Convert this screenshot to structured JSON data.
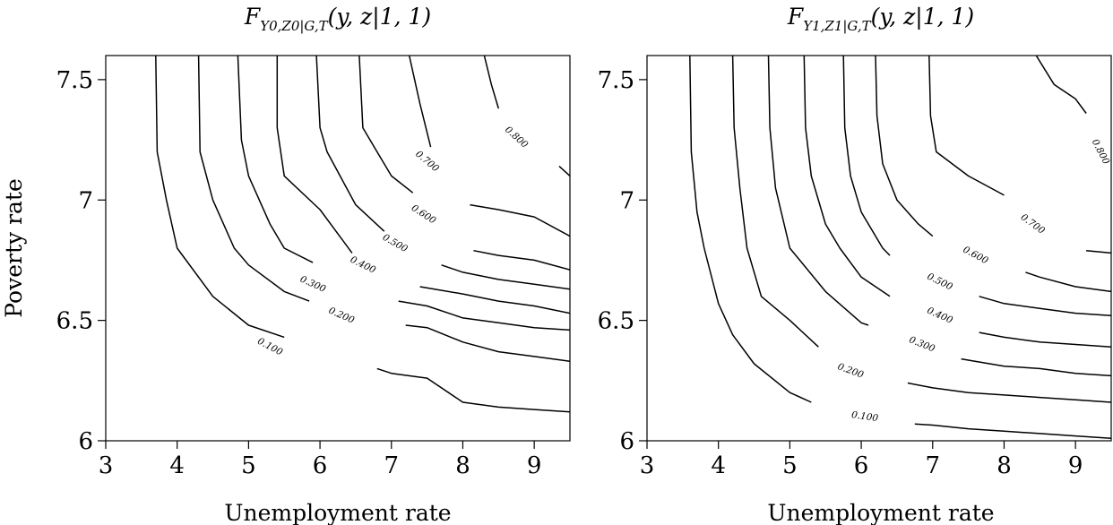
{
  "chart_data": [
    {
      "type": "contour",
      "title_main": "F",
      "title_sub": "Y0,Z0|G,T",
      "title_args": "(y, z|1, 1)",
      "xlabel": "Unemployment rate",
      "ylabel": "Poverty rate",
      "xlim": [
        3,
        9.5
      ],
      "ylim": [
        6,
        7.6
      ],
      "xticks": [
        3,
        4,
        5,
        6,
        7,
        8,
        9
      ],
      "yticks": [
        6,
        6.5,
        7,
        7.5
      ],
      "ytick_labels": [
        "6",
        "6.5",
        "7",
        "7.5"
      ],
      "grid": false,
      "levels": [
        {
          "label": "0.100",
          "label_pos": [
            5.3,
            6.39
          ],
          "label_angle": 28,
          "segments": [
            [
              [
                3.7,
                7.6
              ],
              [
                3.72,
                7.2
              ],
              [
                3.85,
                7.0
              ],
              [
                4.0,
                6.8
              ],
              [
                4.5,
                6.6
              ],
              [
                5.0,
                6.48
              ],
              [
                5.5,
                6.43
              ]
            ],
            [
              [
                6.8,
                6.3
              ],
              [
                7.0,
                6.28
              ],
              [
                7.5,
                6.26
              ],
              [
                8.0,
                6.16
              ],
              [
                8.5,
                6.14
              ],
              [
                9.0,
                6.13
              ],
              [
                9.5,
                6.12
              ]
            ]
          ]
        },
        {
          "label": "0.200",
          "label_pos": [
            6.3,
            6.52
          ],
          "label_angle": 24,
          "segments": [
            [
              [
                4.3,
                7.6
              ],
              [
                4.32,
                7.2
              ],
              [
                4.5,
                7.0
              ],
              [
                4.8,
                6.8
              ],
              [
                5.0,
                6.73
              ],
              [
                5.5,
                6.62
              ],
              [
                5.85,
                6.58
              ]
            ],
            [
              [
                7.2,
                6.48
              ],
              [
                7.5,
                6.47
              ],
              [
                8.0,
                6.41
              ],
              [
                8.5,
                6.37
              ],
              [
                9.0,
                6.35
              ],
              [
                9.5,
                6.33
              ]
            ]
          ]
        },
        {
          "label": "0.300",
          "label_pos": [
            5.9,
            6.65
          ],
          "label_angle": 24,
          "segments": [
            [
              [
                4.85,
                7.6
              ],
              [
                4.9,
                7.25
              ],
              [
                5.0,
                7.1
              ],
              [
                5.3,
                6.9
              ],
              [
                5.5,
                6.8
              ],
              [
                5.9,
                6.74
              ]
            ],
            [
              [
                7.1,
                6.58
              ],
              [
                7.5,
                6.56
              ],
              [
                8.0,
                6.51
              ],
              [
                8.5,
                6.49
              ],
              [
                9.0,
                6.47
              ],
              [
                9.5,
                6.46
              ]
            ]
          ]
        },
        {
          "label": "0.400",
          "label_pos": [
            6.6,
            6.73
          ],
          "label_angle": 26,
          "segments": [
            [
              [
                5.4,
                7.6
              ],
              [
                5.4,
                7.3
              ],
              [
                5.5,
                7.1
              ],
              [
                6.0,
                6.96
              ],
              [
                6.3,
                6.84
              ],
              [
                6.45,
                6.78
              ]
            ],
            [
              [
                7.4,
                6.64
              ],
              [
                8.0,
                6.61
              ],
              [
                8.5,
                6.58
              ],
              [
                9.0,
                6.56
              ],
              [
                9.5,
                6.53
              ]
            ]
          ]
        },
        {
          "label": "0.500",
          "label_pos": [
            7.05,
            6.82
          ],
          "label_angle": 30,
          "segments": [
            [
              [
                5.95,
                7.6
              ],
              [
                6.0,
                7.3
              ],
              [
                6.1,
                7.2
              ],
              [
                6.5,
                6.98
              ],
              [
                6.9,
                6.87
              ]
            ],
            [
              [
                7.7,
                6.73
              ],
              [
                8.0,
                6.7
              ],
              [
                8.5,
                6.67
              ],
              [
                9.0,
                6.65
              ],
              [
                9.5,
                6.63
              ]
            ]
          ]
        },
        {
          "label": "0.600",
          "label_pos": [
            7.45,
            6.94
          ],
          "label_angle": 33,
          "segments": [
            [
              [
                6.55,
                7.6
              ],
              [
                6.6,
                7.3
              ],
              [
                6.8,
                7.2
              ],
              [
                7.0,
                7.1
              ],
              [
                7.3,
                7.03
              ]
            ],
            [
              [
                8.15,
                6.79
              ],
              [
                8.5,
                6.77
              ],
              [
                9.0,
                6.75
              ],
              [
                9.5,
                6.71
              ]
            ]
          ]
        },
        {
          "label": "0.700",
          "label_pos": [
            7.5,
            7.16
          ],
          "label_angle": 40,
          "segments": [
            [
              [
                7.25,
                7.6
              ],
              [
                7.4,
                7.4
              ],
              [
                7.55,
                7.22
              ]
            ],
            [
              [
                8.1,
                6.98
              ],
              [
                8.5,
                6.96
              ],
              [
                9.0,
                6.93
              ],
              [
                9.5,
                6.85
              ]
            ]
          ]
        },
        {
          "label": "0.800",
          "label_pos": [
            8.75,
            7.26
          ],
          "label_angle": 42,
          "segments": [
            [
              [
                8.3,
                7.6
              ],
              [
                8.4,
                7.48
              ],
              [
                8.5,
                7.38
              ]
            ],
            [
              [
                9.35,
                7.14
              ],
              [
                9.5,
                7.1
              ]
            ]
          ]
        }
      ]
    },
    {
      "type": "contour",
      "title_main": "F",
      "title_sub": "Y1,Z1|G,T",
      "title_args": "(y, z|1, 1)",
      "xlabel": "Unemployment rate",
      "ylabel": "",
      "xlim": [
        3,
        9.5
      ],
      "ylim": [
        6,
        7.6
      ],
      "xticks": [
        3,
        4,
        5,
        6,
        7,
        8,
        9
      ],
      "yticks": [
        6,
        6.5,
        7,
        7.5
      ],
      "ytick_labels": [
        "6",
        "6.5",
        "7",
        "7.5"
      ],
      "grid": false,
      "levels": [
        {
          "label": "0.100",
          "label_pos": [
            6.05,
            6.1
          ],
          "label_angle": 8,
          "segments": [
            [
              [
                3.6,
                7.6
              ],
              [
                3.62,
                7.2
              ],
              [
                3.7,
                6.95
              ],
              [
                3.8,
                6.8
              ],
              [
                4.0,
                6.57
              ],
              [
                4.2,
                6.44
              ],
              [
                4.5,
                6.32
              ],
              [
                5.0,
                6.2
              ],
              [
                5.3,
                6.16
              ]
            ],
            [
              [
                6.75,
                6.07
              ],
              [
                7.0,
                6.065
              ],
              [
                7.5,
                6.05
              ],
              [
                8.0,
                6.04
              ],
              [
                8.5,
                6.03
              ],
              [
                9.0,
                6.02
              ],
              [
                9.5,
                6.01
              ]
            ]
          ]
        },
        {
          "label": "0.200",
          "label_pos": [
            5.85,
            6.29
          ],
          "label_angle": 20,
          "segments": [
            [
              [
                4.2,
                7.6
              ],
              [
                4.22,
                7.3
              ],
              [
                4.3,
                7.05
              ],
              [
                4.4,
                6.8
              ],
              [
                4.6,
                6.6
              ],
              [
                5.0,
                6.5
              ],
              [
                5.4,
                6.39
              ]
            ],
            [
              [
                6.65,
                6.24
              ],
              [
                7.0,
                6.22
              ],
              [
                7.5,
                6.2
              ],
              [
                8.0,
                6.19
              ],
              [
                8.5,
                6.18
              ],
              [
                9.0,
                6.17
              ],
              [
                9.5,
                6.16
              ]
            ]
          ]
        },
        {
          "label": "0.300",
          "label_pos": [
            6.85,
            6.4
          ],
          "label_angle": 22,
          "segments": [
            [
              [
                4.7,
                7.6
              ],
              [
                4.72,
                7.3
              ],
              [
                4.8,
                7.05
              ],
              [
                5.0,
                6.8
              ],
              [
                5.5,
                6.62
              ],
              [
                6.0,
                6.49
              ],
              [
                6.1,
                6.48
              ]
            ],
            [
              [
                7.4,
                6.34
              ],
              [
                7.5,
                6.335
              ],
              [
                8.0,
                6.31
              ],
              [
                8.5,
                6.3
              ],
              [
                9.0,
                6.28
              ],
              [
                9.5,
                6.27
              ]
            ]
          ]
        },
        {
          "label": "0.400",
          "label_pos": [
            7.1,
            6.52
          ],
          "label_angle": 24,
          "segments": [
            [
              [
                5.2,
                7.6
              ],
              [
                5.22,
                7.3
              ],
              [
                5.3,
                7.1
              ],
              [
                5.5,
                6.9
              ],
              [
                5.7,
                6.8
              ],
              [
                6.0,
                6.68
              ],
              [
                6.4,
                6.6
              ]
            ],
            [
              [
                7.65,
                6.45
              ],
              [
                8.0,
                6.43
              ],
              [
                8.5,
                6.41
              ],
              [
                9.0,
                6.4
              ],
              [
                9.5,
                6.39
              ]
            ]
          ]
        },
        {
          "label": "0.500",
          "label_pos": [
            7.1,
            6.66
          ],
          "label_angle": 26,
          "segments": [
            [
              [
                5.75,
                7.6
              ],
              [
                5.77,
                7.3
              ],
              [
                5.85,
                7.1
              ],
              [
                6.0,
                6.95
              ],
              [
                6.3,
                6.8
              ],
              [
                6.4,
                6.77
              ]
            ],
            [
              [
                7.65,
                6.6
              ],
              [
                8.0,
                6.57
              ],
              [
                8.5,
                6.55
              ],
              [
                9.0,
                6.53
              ],
              [
                9.5,
                6.52
              ]
            ]
          ]
        },
        {
          "label": "0.600",
          "label_pos": [
            7.6,
            6.77
          ],
          "label_angle": 28,
          "segments": [
            [
              [
                6.2,
                7.6
              ],
              [
                6.22,
                7.35
              ],
              [
                6.3,
                7.15
              ],
              [
                6.5,
                7.0
              ],
              [
                6.8,
                6.9
              ],
              [
                7.0,
                6.85
              ]
            ],
            [
              [
                8.3,
                6.7
              ],
              [
                8.5,
                6.68
              ],
              [
                9.0,
                6.64
              ],
              [
                9.5,
                6.62
              ]
            ]
          ]
        },
        {
          "label": "0.700",
          "label_pos": [
            8.4,
            6.9
          ],
          "label_angle": 36,
          "segments": [
            [
              [
                6.95,
                7.6
              ],
              [
                6.97,
                7.35
              ],
              [
                7.05,
                7.2
              ],
              [
                7.5,
                7.1
              ],
              [
                8.0,
                7.02
              ]
            ],
            [
              [
                9.15,
                6.79
              ],
              [
                9.5,
                6.78
              ]
            ]
          ]
        },
        {
          "label": "0.800",
          "label_pos": [
            9.35,
            7.2
          ],
          "label_angle": 62,
          "segments": [
            [
              [
                8.45,
                7.6
              ],
              [
                8.7,
                7.48
              ],
              [
                9.0,
                7.42
              ],
              [
                9.15,
                7.36
              ]
            ]
          ]
        }
      ]
    }
  ]
}
